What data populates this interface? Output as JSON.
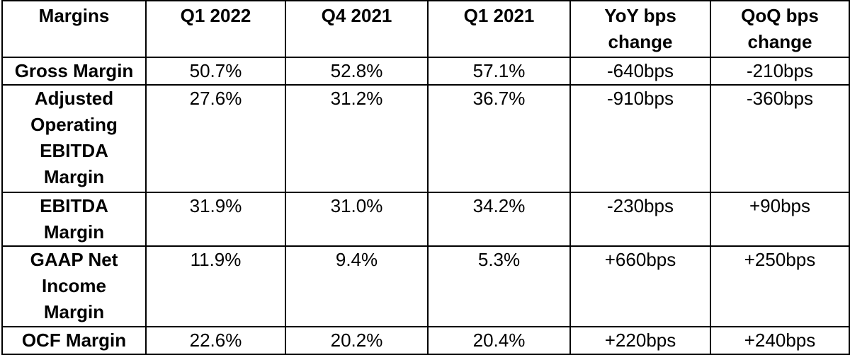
{
  "table": {
    "headers": [
      "Margins",
      "Q1 2022",
      "Q4 2021",
      "Q1 2021",
      "YoY bps change",
      "QoQ bps change"
    ],
    "rows": [
      {
        "label": "Gross Margin",
        "values": [
          "50.7%",
          "52.8%",
          "57.1%",
          "-640bps",
          "-210bps"
        ]
      },
      {
        "label": "Adjusted Operating EBITDA Margin",
        "values": [
          "27.6%",
          "31.2%",
          "36.7%",
          "-910bps",
          "-360bps"
        ]
      },
      {
        "label": "EBITDA Margin",
        "values": [
          "31.9%",
          "31.0%",
          "34.2%",
          "-230bps",
          "+90bps"
        ]
      },
      {
        "label": "GAAP Net Income Margin",
        "values": [
          "11.9%",
          "9.4%",
          "5.3%",
          "+660bps",
          "+250bps"
        ]
      },
      {
        "label": "OCF Margin",
        "values": [
          "22.6%",
          "20.2%",
          "20.4%",
          "+220bps",
          "+240bps"
        ]
      }
    ]
  }
}
